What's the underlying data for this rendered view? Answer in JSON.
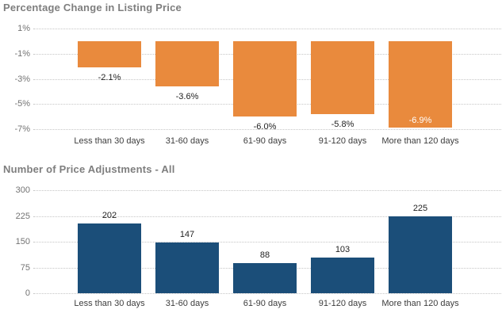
{
  "chart_data": [
    {
      "type": "bar",
      "title": "Percentage Change in Listing Price",
      "categories": [
        "Less than 30 days",
        "31-60 days",
        "61-90 days",
        "91-120 days",
        "More than 120 days"
      ],
      "values": [
        -2.1,
        -3.6,
        -6.0,
        -5.8,
        -6.9
      ],
      "value_labels": [
        "-2.1%",
        "-3.6%",
        "-6.0%",
        "-5.8%",
        "-6.9%"
      ],
      "value_label_placement": [
        "below",
        "below",
        "below",
        "below",
        "inside"
      ],
      "yticks": [
        {
          "label": "1%",
          "value": 1
        },
        {
          "label": "-1%",
          "value": -1
        },
        {
          "label": "-3%",
          "value": -3
        },
        {
          "label": "-5%",
          "value": -5
        },
        {
          "label": "-7%",
          "value": -7
        }
      ],
      "ylim": [
        -7,
        1
      ],
      "bar_color": "#E98A3D",
      "inside_label_color": "#FFFFFF",
      "grid": "horizontal-dotted",
      "legend": "none"
    },
    {
      "type": "bar",
      "title": "Number of Price Adjustments - All",
      "categories": [
        "Less than 30 days",
        "31-60 days",
        "61-90 days",
        "91-120 days",
        "More than 120 days"
      ],
      "values": [
        202,
        147,
        88,
        103,
        225
      ],
      "value_labels": [
        "202",
        "147",
        "88",
        "103",
        "225"
      ],
      "value_label_placement": [
        "above",
        "above",
        "above",
        "above",
        "above"
      ],
      "yticks": [
        {
          "label": "300",
          "value": 300
        },
        {
          "label": "225",
          "value": 225
        },
        {
          "label": "150",
          "value": 150
        },
        {
          "label": "75",
          "value": 75
        },
        {
          "label": "0",
          "value": 0
        }
      ],
      "ylim": [
        0,
        300
      ],
      "bar_color": "#1B4E79",
      "inside_label_color": "#FFFFFF",
      "grid": "horizontal-dotted",
      "legend": "none"
    }
  ],
  "colors": {
    "orange_bar": "#E98A3D",
    "blue_bar": "#1B4E79",
    "title_gray": "#7E7E7E",
    "gridline_gray": "#C6C6C6",
    "background": "#FFFFFF"
  }
}
